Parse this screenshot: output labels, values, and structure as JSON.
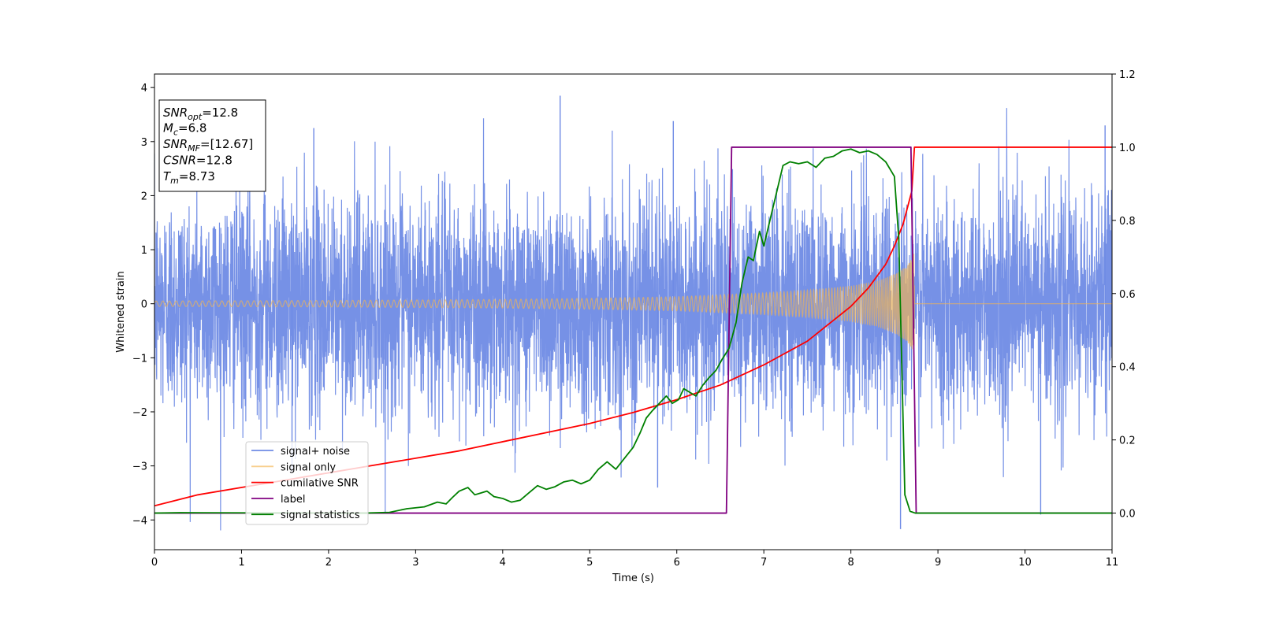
{
  "chart_data": {
    "type": "line",
    "xlabel": "Time (s)",
    "ylabel": "Whitened strain",
    "xlim": [
      0,
      11
    ],
    "ylim": [
      -4.55,
      4.25
    ],
    "y2lim": [
      -0.1,
      1.2
    ],
    "x_ticks": [
      0,
      1,
      2,
      3,
      4,
      5,
      6,
      7,
      8,
      9,
      10,
      11
    ],
    "x_tick_labels": [
      "0",
      "1",
      "2",
      "3",
      "4",
      "5",
      "6",
      "7",
      "8",
      "9",
      "10",
      "11"
    ],
    "y_ticks": [
      4,
      3,
      2,
      1,
      0,
      -1,
      -2,
      -3,
      -4
    ],
    "y_tick_labels": [
      "4",
      "3",
      "2",
      "1",
      "0",
      "−1",
      "−2",
      "−3",
      "−4"
    ],
    "y2_ticks": [
      1.2,
      1.0,
      0.8,
      0.6,
      0.4,
      0.2,
      0.0
    ],
    "y2_tick_labels": [
      "1.2",
      "1.0",
      "0.8",
      "0.6",
      "0.4",
      "0.2",
      "0.0"
    ],
    "grid": false,
    "legend_placement": "lower-left",
    "info_box": {
      "snr_opt": {
        "sym": "SNR",
        "sub": "opt",
        "value": "=12.8"
      },
      "mc": {
        "sym": "M",
        "sub": "c",
        "value": "=6.8"
      },
      "snr_mf": {
        "sym": "SNR",
        "sub": "MF",
        "value": "=[12.67]"
      },
      "csnr": {
        "sym": "CSNR",
        "sub": "",
        "value": "=12.8"
      },
      "tm": {
        "sym": "T",
        "sub": "m",
        "value": "=8.73"
      }
    },
    "series": [
      {
        "name": "signal+ noise",
        "axis": "left",
        "color": "#6f8be5",
        "kind": "noise",
        "approx_range": [
          -4.2,
          3.85
        ],
        "notable_peaks": [
          [
            4.66,
            3.85
          ],
          [
            1.83,
            3.25
          ],
          [
            5.96,
            3.38
          ],
          [
            10.92,
            3.3
          ],
          [
            8.57,
            -4.17
          ],
          [
            1.58,
            -3.1
          ],
          [
            10.18,
            -3.9
          ],
          [
            5.78,
            -3.4
          ]
        ]
      },
      {
        "name": "signal only",
        "axis": "left",
        "color": "#f5b550",
        "kind": "chirp",
        "merger_time": 8.73,
        "envelope": [
          [
            0,
            0.05
          ],
          [
            2,
            0.06
          ],
          [
            4,
            0.08
          ],
          [
            5,
            0.1
          ],
          [
            6,
            0.13
          ],
          [
            7,
            0.2
          ],
          [
            7.5,
            0.25
          ],
          [
            8,
            0.33
          ],
          [
            8.3,
            0.42
          ],
          [
            8.5,
            0.55
          ],
          [
            8.65,
            0.7
          ],
          [
            8.73,
            0.95
          ]
        ]
      },
      {
        "name": "cumilative SNR",
        "axis": "right",
        "color": "#ff0000",
        "x": [
          0,
          0.5,
          1,
          1.5,
          2,
          2.5,
          3,
          3.5,
          4,
          4.5,
          5,
          5.5,
          6,
          6.5,
          7,
          7.5,
          8,
          8.2,
          8.4,
          8.5,
          8.6,
          8.7,
          8.73,
          11
        ],
        "y": [
          0.02,
          0.05,
          0.07,
          0.09,
          0.11,
          0.13,
          0.15,
          0.17,
          0.195,
          0.22,
          0.245,
          0.275,
          0.31,
          0.35,
          0.405,
          0.47,
          0.565,
          0.615,
          0.68,
          0.73,
          0.79,
          0.88,
          1.0,
          1.0
        ]
      },
      {
        "name": "label",
        "axis": "right",
        "color": "#800080",
        "x": [
          0,
          6.57,
          6.63,
          8.69,
          8.75,
          11
        ],
        "y": [
          0,
          0,
          1,
          1,
          0,
          0
        ]
      },
      {
        "name": "signal statistics",
        "axis": "right",
        "color": "#008000",
        "x": [
          0,
          0.3,
          2.4,
          2.7,
          2.9,
          3.1,
          3.25,
          3.35,
          3.42,
          3.5,
          3.6,
          3.68,
          3.75,
          3.82,
          3.9,
          4.0,
          4.1,
          4.2,
          4.3,
          4.4,
          4.5,
          4.6,
          4.7,
          4.8,
          4.9,
          5.0,
          5.1,
          5.2,
          5.3,
          5.4,
          5.5,
          5.58,
          5.65,
          5.72,
          5.8,
          5.88,
          5.95,
          6.02,
          6.08,
          6.15,
          6.22,
          6.3,
          6.37,
          6.45,
          6.52,
          6.6,
          6.68,
          6.75,
          6.82,
          6.88,
          6.95,
          7.0,
          7.07,
          7.15,
          7.22,
          7.3,
          7.4,
          7.5,
          7.6,
          7.7,
          7.8,
          7.9,
          8.0,
          8.1,
          8.2,
          8.3,
          8.4,
          8.5,
          8.55,
          8.62,
          8.68,
          8.74,
          8.78,
          11
        ],
        "y": [
          0.0,
          0.001,
          0.0,
          0.002,
          0.012,
          0.017,
          0.03,
          0.025,
          0.042,
          0.06,
          0.07,
          0.05,
          0.055,
          0.06,
          0.045,
          0.04,
          0.03,
          0.035,
          0.055,
          0.075,
          0.065,
          0.072,
          0.085,
          0.09,
          0.08,
          0.09,
          0.12,
          0.14,
          0.12,
          0.15,
          0.18,
          0.22,
          0.26,
          0.28,
          0.3,
          0.32,
          0.3,
          0.31,
          0.34,
          0.33,
          0.32,
          0.35,
          0.37,
          0.39,
          0.42,
          0.45,
          0.52,
          0.63,
          0.7,
          0.69,
          0.77,
          0.73,
          0.8,
          0.88,
          0.95,
          0.96,
          0.955,
          0.96,
          0.945,
          0.97,
          0.975,
          0.99,
          0.995,
          0.985,
          0.99,
          0.98,
          0.96,
          0.92,
          0.75,
          0.05,
          0.005,
          0.0,
          0.0,
          0.0
        ]
      }
    ],
    "legend": [
      "signal+ noise",
      "signal only",
      "cumilative SNR",
      "label",
      "signal statistics"
    ]
  }
}
